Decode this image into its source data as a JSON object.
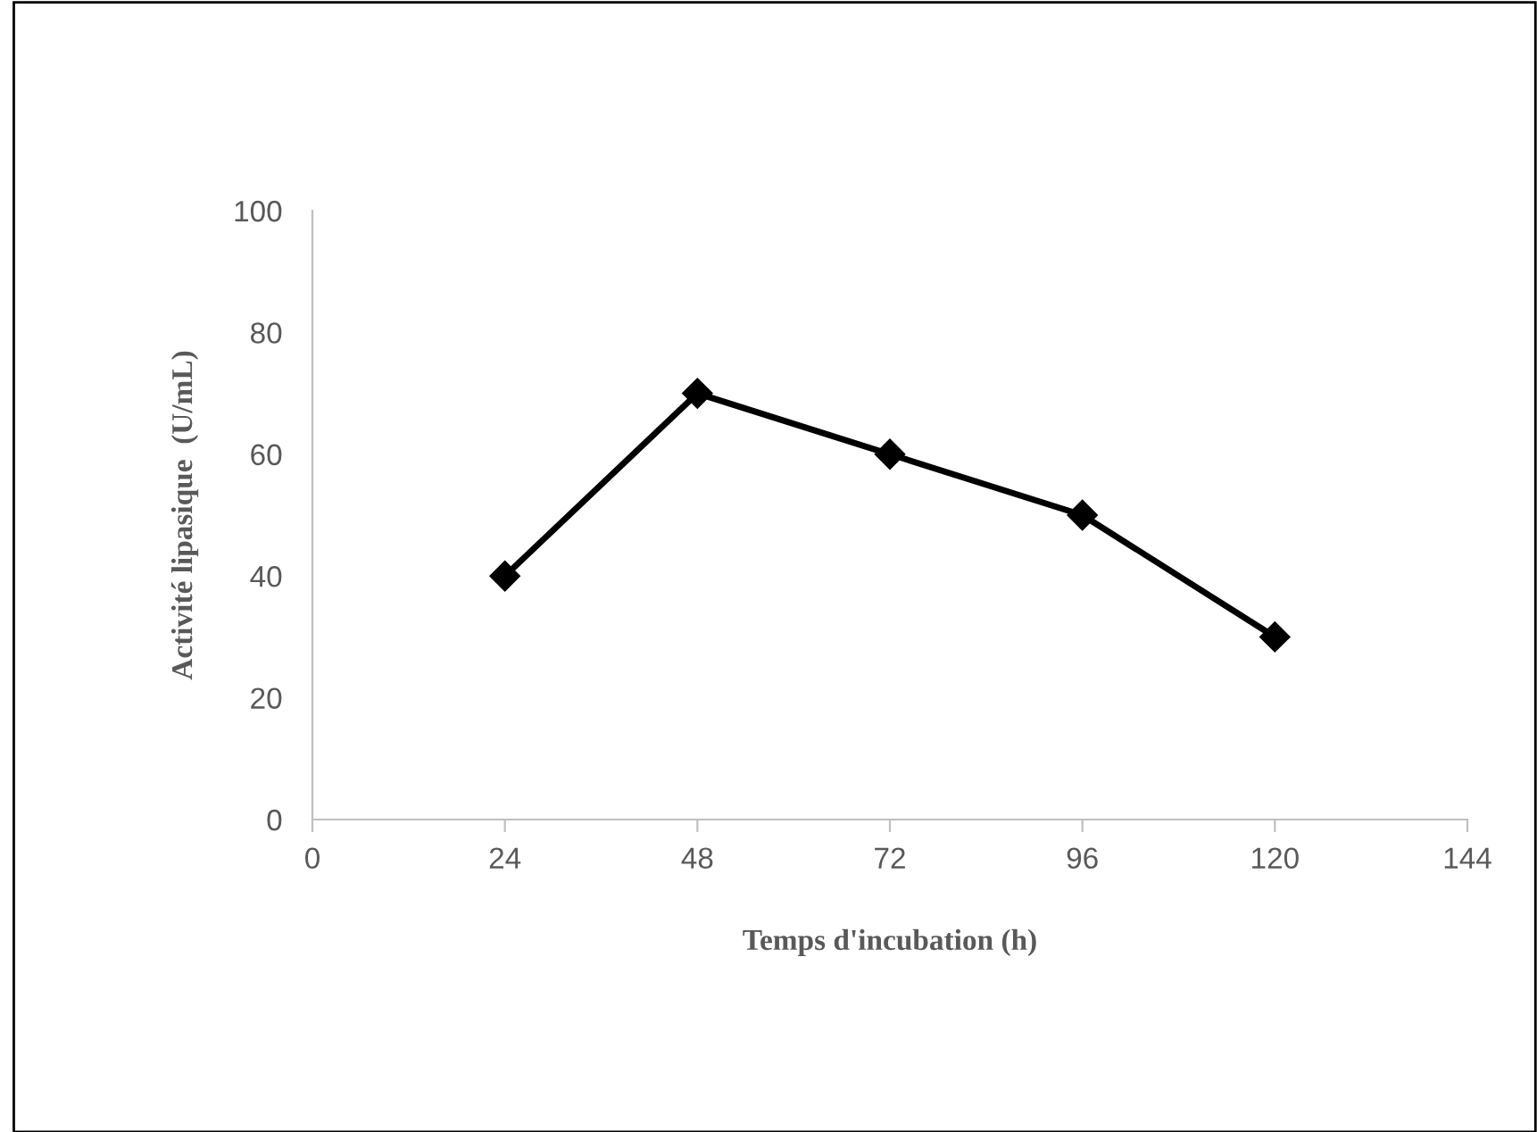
{
  "chart_data": {
    "type": "line",
    "xlabel": "Temps d'incubation (h)",
    "ylabel": "Activité lipasique  (U/mL)",
    "x": [
      24,
      48,
      72,
      96,
      120
    ],
    "series": [
      {
        "color": "#000000",
        "values": [
          40,
          70,
          60,
          50,
          30
        ]
      }
    ],
    "xlim": [
      0,
      144
    ],
    "xticks": [
      0,
      24,
      48,
      72,
      96,
      120,
      144
    ],
    "ylim": [
      0,
      100
    ],
    "yticks": [
      0,
      20,
      40,
      60,
      80,
      100
    ],
    "grid": false,
    "legend": false,
    "marker": "diamond",
    "line_style": "solid"
  }
}
